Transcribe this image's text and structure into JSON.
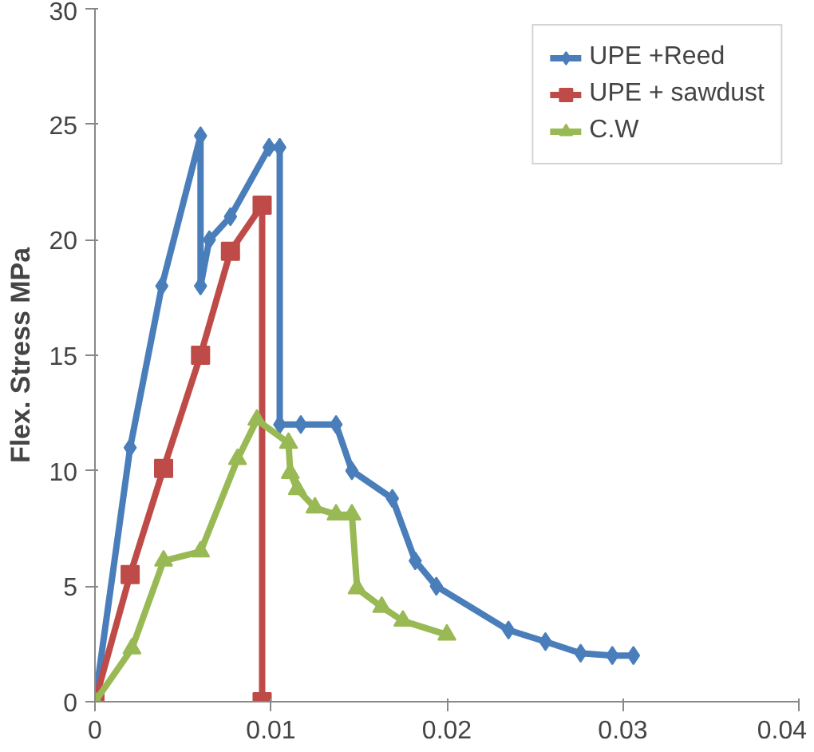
{
  "chart_data": {
    "type": "line",
    "ylabel": "Flex. Stress MPa",
    "xlim": [
      0,
      0.04
    ],
    "xticks": [
      0,
      0.01,
      0.02,
      0.03,
      0.04
    ],
    "ylim": [
      0,
      30
    ],
    "yticks": [
      0,
      5,
      10,
      15,
      20,
      25,
      30
    ],
    "grid": false,
    "legend": "top right",
    "line_style": "solid",
    "series": [
      {
        "name": "UPE +Reed",
        "color": "#4a7ebb",
        "marker": "diamond",
        "x": [
          0,
          0.002,
          0.0038,
          0.006,
          0.006,
          0.0065,
          0.0077,
          0.0099,
          0.0105,
          0.0105,
          0.0117,
          0.0137,
          0.0146,
          0.0169,
          0.0182,
          0.0194,
          0.0235,
          0.0256,
          0.0276,
          0.0294,
          0.0306
        ],
        "values": [
          0,
          11,
          18,
          24.5,
          18,
          20,
          21,
          24,
          24,
          12,
          12,
          12,
          10,
          8.8,
          6.1,
          5,
          3.1,
          2.6,
          2.1,
          2,
          2
        ]
      },
      {
        "name": "UPE + sawdust",
        "color": "#be4b48",
        "marker": "square",
        "x": [
          0,
          0.002,
          0.0039,
          0.006,
          0.0077,
          0.0095,
          0.0095
        ],
        "values": [
          0,
          5.5,
          10.1,
          15,
          19.5,
          21.5,
          0
        ]
      },
      {
        "name": "C.W",
        "color": "#98b954",
        "marker": "triangle",
        "x": [
          0,
          0.0021,
          0.0039,
          0.006,
          0.0081,
          0.0092,
          0.011,
          0.0111,
          0.0115,
          0.0125,
          0.0137,
          0.0146,
          0.0149,
          0.0163,
          0.0175,
          0.02
        ],
        "values": [
          0,
          2.3,
          6.1,
          6.5,
          10.5,
          12.2,
          11.2,
          9.9,
          9.2,
          8.4,
          8.1,
          8.1,
          4.9,
          4.1,
          3.5,
          2.9
        ]
      }
    ]
  }
}
